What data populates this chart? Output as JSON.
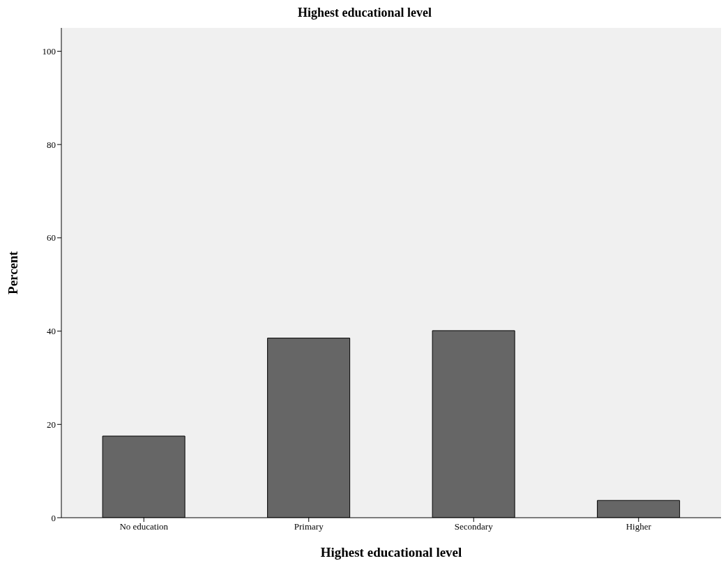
{
  "chart_data": {
    "type": "bar",
    "title": "Highest educational level",
    "xlabel": "Highest educational level",
    "ylabel": "Percent",
    "categories": [
      "No education",
      "Primary",
      "Secondary",
      "Higher"
    ],
    "values": [
      17.5,
      38.5,
      40.1,
      3.7
    ],
    "color": "#666666",
    "ylim": [
      0,
      105
    ],
    "yticks": [
      0,
      20,
      40,
      60,
      80,
      100
    ],
    "grid": false
  }
}
